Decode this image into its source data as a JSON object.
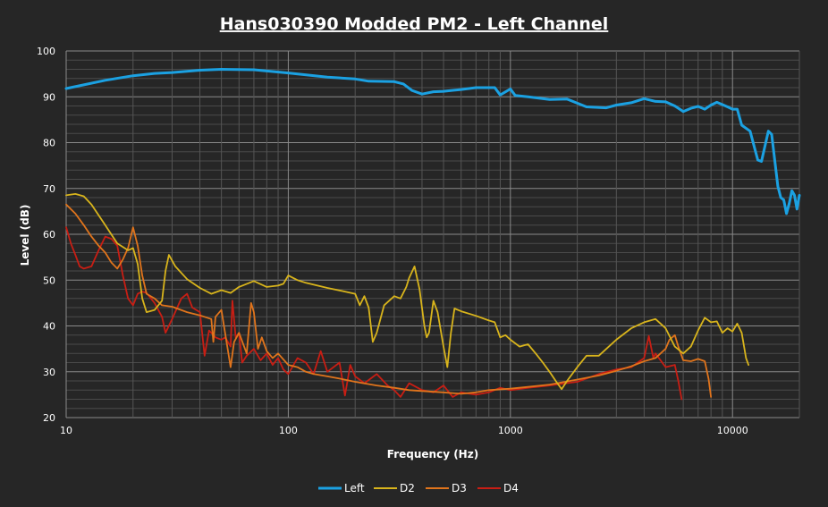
{
  "chart_data": {
    "type": "line",
    "title": "Hans030390  Modded PM2 - Left Channel",
    "xlabel": "Frequency (Hz)",
    "ylabel": "Level (dB)",
    "xscale": "log",
    "xlim": [
      10,
      20000
    ],
    "ylim": [
      20,
      100
    ],
    "xticks": [
      "10",
      "100",
      "1000",
      "10000"
    ],
    "yticks": [
      "20",
      "30",
      "40",
      "50",
      "60",
      "70",
      "80",
      "90",
      "100"
    ],
    "grid": true,
    "legend": "bottom",
    "series": [
      {
        "name": "Left",
        "color": "#1ba1e2",
        "points": [
          [
            10,
            91.8
          ],
          [
            12,
            92.6
          ],
          [
            15,
            93.6
          ],
          [
            20,
            94.6
          ],
          [
            25,
            95.1
          ],
          [
            30,
            95.3
          ],
          [
            40,
            95.8
          ],
          [
            50,
            96.0
          ],
          [
            70,
            95.9
          ],
          [
            100,
            95.2
          ],
          [
            150,
            94.3
          ],
          [
            200,
            93.9
          ],
          [
            230,
            93.4
          ],
          [
            300,
            93.3
          ],
          [
            330,
            92.8
          ],
          [
            360,
            91.4
          ],
          [
            400,
            90.6
          ],
          [
            450,
            91.1
          ],
          [
            500,
            91.2
          ],
          [
            600,
            91.6
          ],
          [
            700,
            92.0
          ],
          [
            850,
            92.0
          ],
          [
            900,
            90.4
          ],
          [
            1000,
            91.7
          ],
          [
            1050,
            90.3
          ],
          [
            1200,
            90.0
          ],
          [
            1500,
            89.4
          ],
          [
            1800,
            89.5
          ],
          [
            2000,
            88.6
          ],
          [
            2200,
            87.8
          ],
          [
            2700,
            87.6
          ],
          [
            3000,
            88.2
          ],
          [
            3500,
            88.7
          ],
          [
            4000,
            89.6
          ],
          [
            4500,
            89.0
          ],
          [
            5000,
            88.9
          ],
          [
            5500,
            88.0
          ],
          [
            6000,
            86.8
          ],
          [
            6500,
            87.5
          ],
          [
            7000,
            87.9
          ],
          [
            7500,
            87.3
          ],
          [
            8000,
            88.2
          ],
          [
            8500,
            88.8
          ],
          [
            9000,
            88.3
          ],
          [
            9500,
            87.8
          ],
          [
            10000,
            87.3
          ],
          [
            10500,
            87.3
          ],
          [
            11000,
            83.8
          ],
          [
            12000,
            82.5
          ],
          [
            13000,
            76.2
          ],
          [
            13500,
            75.9
          ],
          [
            14500,
            82.5
          ],
          [
            15000,
            81.8
          ],
          [
            16000,
            70.5
          ],
          [
            16500,
            68.0
          ],
          [
            17000,
            67.5
          ],
          [
            17500,
            64.5
          ],
          [
            18000,
            66.7
          ],
          [
            18500,
            69.5
          ],
          [
            19000,
            68.5
          ],
          [
            19500,
            65.5
          ],
          [
            20000,
            68.5
          ]
        ]
      },
      {
        "name": "D2",
        "color": "#d8b41c",
        "points": [
          [
            10,
            68.5
          ],
          [
            11,
            68.8
          ],
          [
            12,
            68.3
          ],
          [
            13,
            66.5
          ],
          [
            15,
            62.0
          ],
          [
            17,
            58.0
          ],
          [
            19,
            56.5
          ],
          [
            20,
            57.0
          ],
          [
            21,
            53.5
          ],
          [
            22,
            46.0
          ],
          [
            23,
            43.0
          ],
          [
            25,
            43.5
          ],
          [
            27,
            45.5
          ],
          [
            28,
            52.0
          ],
          [
            29,
            55.5
          ],
          [
            31,
            53.0
          ],
          [
            35,
            50.2
          ],
          [
            40,
            48.3
          ],
          [
            45,
            47.0
          ],
          [
            50,
            47.8
          ],
          [
            55,
            47.2
          ],
          [
            60,
            48.5
          ],
          [
            70,
            49.8
          ],
          [
            80,
            48.5
          ],
          [
            90,
            48.8
          ],
          [
            95,
            49.2
          ],
          [
            100,
            51.0
          ],
          [
            110,
            50.0
          ],
          [
            120,
            49.4
          ],
          [
            150,
            48.3
          ],
          [
            180,
            47.5
          ],
          [
            200,
            47.0
          ],
          [
            210,
            44.5
          ],
          [
            220,
            46.5
          ],
          [
            230,
            44.0
          ],
          [
            240,
            36.5
          ],
          [
            250,
            38.5
          ],
          [
            270,
            44.5
          ],
          [
            300,
            46.5
          ],
          [
            320,
            46.0
          ],
          [
            340,
            48.5
          ],
          [
            350,
            50.5
          ],
          [
            370,
            53.0
          ],
          [
            390,
            48.0
          ],
          [
            410,
            40.0
          ],
          [
            420,
            37.5
          ],
          [
            430,
            38.5
          ],
          [
            450,
            45.5
          ],
          [
            470,
            43.0
          ],
          [
            500,
            35.5
          ],
          [
            520,
            31.0
          ],
          [
            540,
            38.5
          ],
          [
            560,
            43.8
          ],
          [
            600,
            43.2
          ],
          [
            700,
            42.2
          ],
          [
            800,
            41.2
          ],
          [
            850,
            40.8
          ],
          [
            900,
            37.5
          ],
          [
            950,
            38.0
          ],
          [
            1000,
            37.0
          ],
          [
            1100,
            35.5
          ],
          [
            1200,
            36.0
          ],
          [
            1300,
            34.0
          ],
          [
            1400,
            32.0
          ],
          [
            1500,
            30.0
          ],
          [
            1600,
            28.0
          ],
          [
            1700,
            26.2
          ],
          [
            1800,
            28.0
          ],
          [
            2000,
            31.0
          ],
          [
            2200,
            33.5
          ],
          [
            2500,
            33.5
          ],
          [
            3000,
            37.0
          ],
          [
            3500,
            39.5
          ],
          [
            4000,
            40.8
          ],
          [
            4500,
            41.5
          ],
          [
            5000,
            39.5
          ],
          [
            5500,
            35.5
          ],
          [
            6000,
            34.0
          ],
          [
            6500,
            35.5
          ],
          [
            7000,
            39.0
          ],
          [
            7500,
            41.8
          ],
          [
            8000,
            40.8
          ],
          [
            8500,
            41.0
          ],
          [
            9000,
            38.5
          ],
          [
            9500,
            39.5
          ],
          [
            10000,
            38.8
          ],
          [
            10500,
            40.5
          ],
          [
            11000,
            38.5
          ],
          [
            11500,
            33.0
          ],
          [
            11800,
            31.5
          ]
        ]
      },
      {
        "name": "D3",
        "color": "#e0741c",
        "points": [
          [
            10,
            66.5
          ],
          [
            11,
            64.5
          ],
          [
            12,
            62.0
          ],
          [
            13,
            59.5
          ],
          [
            14,
            57.5
          ],
          [
            15,
            56.0
          ],
          [
            16,
            53.8
          ],
          [
            17,
            52.5
          ],
          [
            18,
            54.5
          ],
          [
            19,
            57.0
          ],
          [
            20,
            61.5
          ],
          [
            21,
            57.5
          ],
          [
            22,
            51.0
          ],
          [
            23,
            47.0
          ],
          [
            25,
            46.0
          ],
          [
            27,
            44.5
          ],
          [
            30,
            44.2
          ],
          [
            35,
            43.0
          ],
          [
            40,
            42.3
          ],
          [
            45,
            41.5
          ],
          [
            46,
            36.5
          ],
          [
            47,
            42.0
          ],
          [
            50,
            43.5
          ],
          [
            55,
            31.0
          ],
          [
            57,
            36.5
          ],
          [
            60,
            38.5
          ],
          [
            65,
            34.0
          ],
          [
            68,
            45.0
          ],
          [
            70,
            43.0
          ],
          [
            73,
            35.0
          ],
          [
            76,
            37.5
          ],
          [
            80,
            34.5
          ],
          [
            85,
            33.0
          ],
          [
            90,
            34.0
          ],
          [
            100,
            31.5
          ],
          [
            110,
            31.0
          ],
          [
            120,
            30.0
          ],
          [
            130,
            29.5
          ],
          [
            150,
            29.0
          ],
          [
            170,
            28.5
          ],
          [
            200,
            27.8
          ],
          [
            250,
            27.0
          ],
          [
            300,
            26.5
          ],
          [
            350,
            26.0
          ],
          [
            400,
            25.8
          ],
          [
            500,
            25.5
          ],
          [
            600,
            25.2
          ],
          [
            700,
            25.5
          ],
          [
            800,
            26.0
          ],
          [
            1000,
            26.3
          ],
          [
            1200,
            26.7
          ],
          [
            1500,
            27.2
          ],
          [
            2000,
            28.3
          ],
          [
            2500,
            29.2
          ],
          [
            3000,
            30.2
          ],
          [
            3500,
            31.2
          ],
          [
            4000,
            32.3
          ],
          [
            4500,
            33.0
          ],
          [
            5000,
            35.0
          ],
          [
            5200,
            37.0
          ],
          [
            5500,
            38.0
          ],
          [
            5700,
            35.5
          ],
          [
            6000,
            32.5
          ],
          [
            6500,
            32.3
          ],
          [
            7000,
            32.8
          ],
          [
            7500,
            32.3
          ],
          [
            7800,
            28.5
          ],
          [
            8000,
            24.5
          ]
        ]
      },
      {
        "name": "D4",
        "color": "#c81e14",
        "points": [
          [
            10,
            61.5
          ],
          [
            10.5,
            58.0
          ],
          [
            11,
            55.5
          ],
          [
            11.5,
            53.0
          ],
          [
            12,
            52.5
          ],
          [
            13,
            53.0
          ],
          [
            14,
            56.5
          ],
          [
            15,
            59.5
          ],
          [
            16,
            59.0
          ],
          [
            17,
            57.5
          ],
          [
            18,
            51.0
          ],
          [
            19,
            46.0
          ],
          [
            20,
            44.5
          ],
          [
            21,
            47.0
          ],
          [
            22,
            47.5
          ],
          [
            23,
            47.2
          ],
          [
            25,
            45.0
          ],
          [
            27,
            42.0
          ],
          [
            28,
            38.5
          ],
          [
            30,
            41.5
          ],
          [
            33,
            46.0
          ],
          [
            35,
            47.0
          ],
          [
            37,
            44.0
          ],
          [
            40,
            43.0
          ],
          [
            42,
            33.5
          ],
          [
            44,
            39.0
          ],
          [
            47,
            37.5
          ],
          [
            50,
            37.0
          ],
          [
            52,
            37.5
          ],
          [
            55,
            35.5
          ],
          [
            56,
            45.5
          ],
          [
            58,
            37.5
          ],
          [
            60,
            38.5
          ],
          [
            62,
            32.0
          ],
          [
            65,
            33.5
          ],
          [
            70,
            35.0
          ],
          [
            75,
            32.5
          ],
          [
            80,
            34.0
          ],
          [
            85,
            31.5
          ],
          [
            90,
            33.0
          ],
          [
            95,
            30.5
          ],
          [
            100,
            29.5
          ],
          [
            110,
            33.0
          ],
          [
            120,
            32.0
          ],
          [
            130,
            29.5
          ],
          [
            140,
            34.5
          ],
          [
            150,
            30.0
          ],
          [
            170,
            32.0
          ],
          [
            180,
            24.8
          ],
          [
            190,
            31.5
          ],
          [
            200,
            29.0
          ],
          [
            220,
            27.5
          ],
          [
            250,
            29.5
          ],
          [
            280,
            27.0
          ],
          [
            300,
            26.0
          ],
          [
            320,
            24.5
          ],
          [
            350,
            27.5
          ],
          [
            400,
            26.0
          ],
          [
            450,
            25.5
          ],
          [
            500,
            27.0
          ],
          [
            550,
            24.5
          ],
          [
            600,
            25.5
          ],
          [
            700,
            25.0
          ],
          [
            800,
            25.5
          ],
          [
            900,
            26.5
          ],
          [
            1000,
            26.0
          ],
          [
            1200,
            26.5
          ],
          [
            1500,
            27.0
          ],
          [
            2000,
            27.8
          ],
          [
            2500,
            29.5
          ],
          [
            3000,
            30.5
          ],
          [
            3500,
            31.0
          ],
          [
            4000,
            33.0
          ],
          [
            4200,
            37.8
          ],
          [
            4400,
            33.0
          ],
          [
            4500,
            34.0
          ],
          [
            5000,
            31.0
          ],
          [
            5500,
            31.5
          ],
          [
            5700,
            28.0
          ],
          [
            5900,
            24.0
          ]
        ]
      }
    ]
  }
}
